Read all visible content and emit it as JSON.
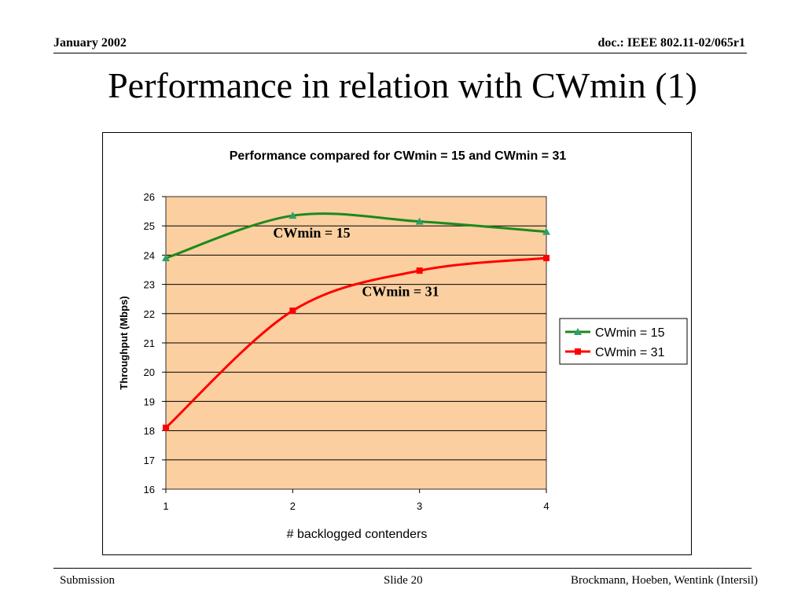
{
  "header": {
    "left": "January 2002",
    "right": "doc.: IEEE 802.11-02/065r1"
  },
  "slide_title": "Performance in relation with CWmin (1)",
  "footer": {
    "left": "Submission",
    "center": "Slide 20",
    "right": "Brockmann, Hoeben, Wentink (Intersil)"
  },
  "chart_data": {
    "type": "line",
    "title": "Performance compared for CWmin = 15 and CWmin = 31",
    "xlabel": "# backlogged contenders",
    "ylabel": "Throughput (Mbps)",
    "x": [
      1,
      2,
      3,
      4
    ],
    "x_ticks": [
      "1",
      "2",
      "3",
      "4"
    ],
    "ylim": [
      16,
      26
    ],
    "y_ticks": [
      "16",
      "17",
      "18",
      "19",
      "20",
      "21",
      "22",
      "23",
      "24",
      "25",
      "26"
    ],
    "grid": true,
    "plot_background": "#FBCFA0",
    "legend_position": "right",
    "series": [
      {
        "name": "CWmin = 15",
        "values": [
          23.9,
          25.35,
          25.15,
          24.8
        ],
        "color": "#1C8A1C",
        "marker": "triangle",
        "marker_color": "#2E9E6A"
      },
      {
        "name": "CWmin = 31",
        "values": [
          18.1,
          22.1,
          23.47,
          23.9
        ],
        "color": "#FF0000",
        "marker": "square",
        "marker_color": "#FF0000"
      }
    ],
    "annotations": [
      {
        "text": "CWmin = 15",
        "x": 2.15,
        "y": 24.6
      },
      {
        "text": "CWmin = 31",
        "x": 2.85,
        "y": 22.6
      }
    ]
  }
}
